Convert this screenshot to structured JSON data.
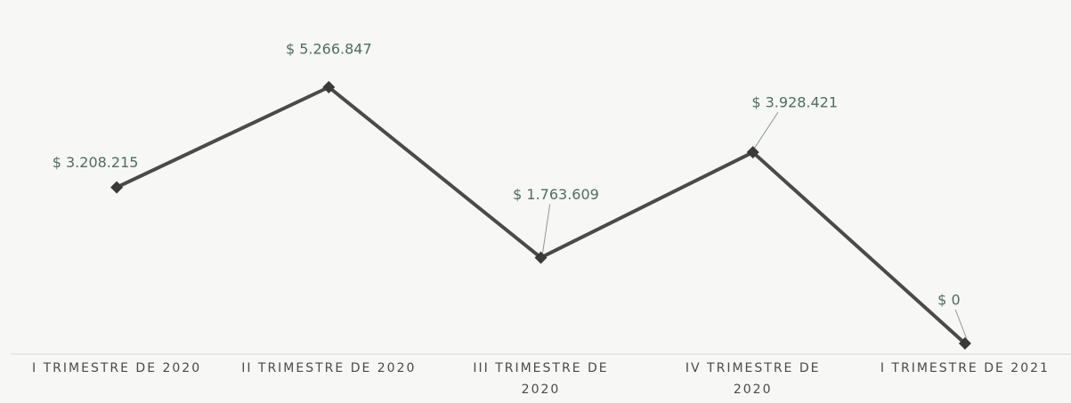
{
  "chart_data": {
    "type": "line",
    "categories": [
      "I TRIMESTRE DE 2020",
      "II TRIMESTRE DE 2020",
      "III TRIMESTRE DE 2020",
      "IV TRIMESTRE DE 2020",
      "I TRIMESTRE DE 2021"
    ],
    "values": [
      3208215,
      5266847,
      1763609,
      3928421,
      0
    ],
    "value_labels": [
      "$ 3.208.215",
      "$ 5.266.847",
      "$ 1.763.609",
      "$ 3.928.421",
      "$ 0"
    ],
    "color": "#4a4a4a"
  }
}
